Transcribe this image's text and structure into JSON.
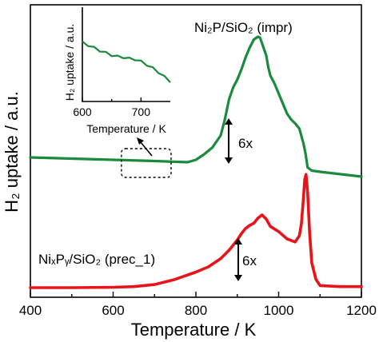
{
  "chart_data": {
    "type": "line",
    "xlabel": "Temperature / K",
    "ylabel": "H₂ uptake / a.u.",
    "xlim": [
      400,
      1200
    ],
    "x_ticks": [
      400,
      600,
      800,
      1000,
      1200
    ],
    "y_ticks_shown": false,
    "grid": false,
    "series": [
      {
        "name": "Ni₂P/SiO₂ (impr)",
        "color": "#1a8a3c",
        "x": [
          400,
          500,
          600,
          700,
          780,
          800,
          820,
          840,
          860,
          870,
          880,
          890,
          900,
          910,
          920,
          930,
          940,
          950,
          955,
          960,
          970,
          975,
          980,
          990,
          1000,
          1010,
          1020,
          1030,
          1040,
          1050,
          1060,
          1065,
          1070,
          1080,
          1100,
          1150,
          1200
        ],
        "y": [
          0.0,
          -0.03,
          -0.06,
          -0.09,
          -0.12,
          -0.06,
          0.08,
          0.25,
          0.55,
          0.95,
          1.45,
          1.75,
          1.95,
          2.2,
          2.5,
          2.75,
          2.95,
          3.02,
          3.0,
          2.85,
          2.55,
          2.25,
          2.05,
          1.85,
          1.6,
          1.35,
          1.1,
          0.95,
          0.85,
          0.72,
          0.35,
          0.1,
          -0.25,
          -0.33,
          -0.36,
          -0.42,
          -0.48
        ]
      },
      {
        "name": "NiₓPᵧ/SiO₂ (prec_1)",
        "color": "#e8141a",
        "x": [
          400,
          500,
          600,
          650,
          700,
          750,
          800,
          830,
          860,
          880,
          900,
          910,
          920,
          930,
          940,
          950,
          960,
          970,
          980,
          1000,
          1020,
          1040,
          1050,
          1055,
          1060,
          1063,
          1066,
          1070,
          1075,
          1080,
          1090,
          1100,
          1150,
          1200
        ],
        "y": [
          0.0,
          0.0,
          0.02,
          0.05,
          0.15,
          0.4,
          0.75,
          1.0,
          1.4,
          1.8,
          2.3,
          2.6,
          2.85,
          3.0,
          3.1,
          3.35,
          3.5,
          3.3,
          2.95,
          2.7,
          2.35,
          2.2,
          2.5,
          3.1,
          4.3,
          5.2,
          5.45,
          4.6,
          2.6,
          1.2,
          0.4,
          0.1,
          0.05,
          0.05
        ]
      }
    ],
    "annotations": [
      {
        "text": "Ni₂P/SiO₂ (impr)",
        "target": "green series"
      },
      {
        "text": "NiₓPᵧ/SiO₂ (prec_1)",
        "target": "red series"
      },
      {
        "text": "6x",
        "target": "green series scale bar"
      },
      {
        "text": "6x",
        "target": "red series scale bar"
      }
    ],
    "inset": {
      "type": "line",
      "xlabel": "Temperature / K",
      "ylabel": "H₂ uptake / a.u.",
      "xlim": [
        600,
        750
      ],
      "x_ticks": [
        600,
        700
      ],
      "color": "#1a8a3c",
      "x": [
        600,
        610,
        620,
        630,
        640,
        650,
        660,
        670,
        680,
        690,
        700,
        710,
        720,
        730,
        740,
        750
      ],
      "y": [
        1.0,
        0.93,
        0.87,
        0.8,
        0.75,
        0.69,
        0.66,
        0.64,
        0.61,
        0.59,
        0.54,
        0.46,
        0.38,
        0.28,
        0.17,
        0.06
      ],
      "zoom_region_x": [
        620,
        740
      ]
    }
  }
}
